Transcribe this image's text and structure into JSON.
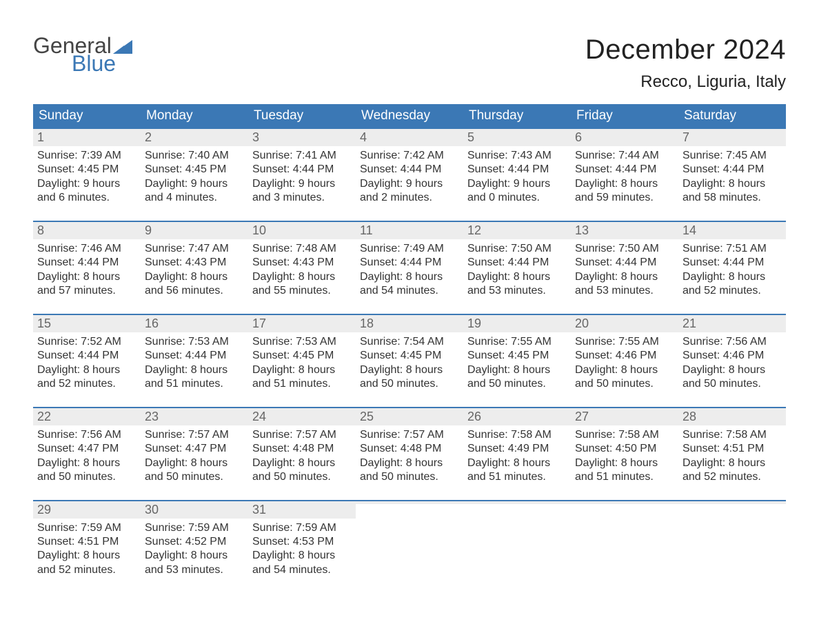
{
  "logo": {
    "word1": "General",
    "word2": "Blue",
    "triangle_color": "#3b78b5"
  },
  "title": "December 2024",
  "location": "Recco, Liguria, Italy",
  "colors": {
    "header_bg": "#3b78b5",
    "header_text": "#ffffff",
    "daynum_bg": "#ededed",
    "daynum_text": "#666666",
    "body_text": "#333333",
    "week_border": "#3b78b5",
    "page_bg": "#ffffff"
  },
  "typography": {
    "title_fontsize": 40,
    "location_fontsize": 24,
    "header_fontsize": 19,
    "daynum_fontsize": 18,
    "body_fontsize": 16
  },
  "layout": {
    "columns": 7,
    "rows": 5
  },
  "day_names": [
    "Sunday",
    "Monday",
    "Tuesday",
    "Wednesday",
    "Thursday",
    "Friday",
    "Saturday"
  ],
  "weeks": [
    [
      {
        "n": "1",
        "sunrise": "7:39 AM",
        "sunset": "4:45 PM",
        "dl1": "9 hours",
        "dl2": "and 6 minutes."
      },
      {
        "n": "2",
        "sunrise": "7:40 AM",
        "sunset": "4:45 PM",
        "dl1": "9 hours",
        "dl2": "and 4 minutes."
      },
      {
        "n": "3",
        "sunrise": "7:41 AM",
        "sunset": "4:44 PM",
        "dl1": "9 hours",
        "dl2": "and 3 minutes."
      },
      {
        "n": "4",
        "sunrise": "7:42 AM",
        "sunset": "4:44 PM",
        "dl1": "9 hours",
        "dl2": "and 2 minutes."
      },
      {
        "n": "5",
        "sunrise": "7:43 AM",
        "sunset": "4:44 PM",
        "dl1": "9 hours",
        "dl2": "and 0 minutes."
      },
      {
        "n": "6",
        "sunrise": "7:44 AM",
        "sunset": "4:44 PM",
        "dl1": "8 hours",
        "dl2": "and 59 minutes."
      },
      {
        "n": "7",
        "sunrise": "7:45 AM",
        "sunset": "4:44 PM",
        "dl1": "8 hours",
        "dl2": "and 58 minutes."
      }
    ],
    [
      {
        "n": "8",
        "sunrise": "7:46 AM",
        "sunset": "4:44 PM",
        "dl1": "8 hours",
        "dl2": "and 57 minutes."
      },
      {
        "n": "9",
        "sunrise": "7:47 AM",
        "sunset": "4:43 PM",
        "dl1": "8 hours",
        "dl2": "and 56 minutes."
      },
      {
        "n": "10",
        "sunrise": "7:48 AM",
        "sunset": "4:43 PM",
        "dl1": "8 hours",
        "dl2": "and 55 minutes."
      },
      {
        "n": "11",
        "sunrise": "7:49 AM",
        "sunset": "4:44 PM",
        "dl1": "8 hours",
        "dl2": "and 54 minutes."
      },
      {
        "n": "12",
        "sunrise": "7:50 AM",
        "sunset": "4:44 PM",
        "dl1": "8 hours",
        "dl2": "and 53 minutes."
      },
      {
        "n": "13",
        "sunrise": "7:50 AM",
        "sunset": "4:44 PM",
        "dl1": "8 hours",
        "dl2": "and 53 minutes."
      },
      {
        "n": "14",
        "sunrise": "7:51 AM",
        "sunset": "4:44 PM",
        "dl1": "8 hours",
        "dl2": "and 52 minutes."
      }
    ],
    [
      {
        "n": "15",
        "sunrise": "7:52 AM",
        "sunset": "4:44 PM",
        "dl1": "8 hours",
        "dl2": "and 52 minutes."
      },
      {
        "n": "16",
        "sunrise": "7:53 AM",
        "sunset": "4:44 PM",
        "dl1": "8 hours",
        "dl2": "and 51 minutes."
      },
      {
        "n": "17",
        "sunrise": "7:53 AM",
        "sunset": "4:45 PM",
        "dl1": "8 hours",
        "dl2": "and 51 minutes."
      },
      {
        "n": "18",
        "sunrise": "7:54 AM",
        "sunset": "4:45 PM",
        "dl1": "8 hours",
        "dl2": "and 50 minutes."
      },
      {
        "n": "19",
        "sunrise": "7:55 AM",
        "sunset": "4:45 PM",
        "dl1": "8 hours",
        "dl2": "and 50 minutes."
      },
      {
        "n": "20",
        "sunrise": "7:55 AM",
        "sunset": "4:46 PM",
        "dl1": "8 hours",
        "dl2": "and 50 minutes."
      },
      {
        "n": "21",
        "sunrise": "7:56 AM",
        "sunset": "4:46 PM",
        "dl1": "8 hours",
        "dl2": "and 50 minutes."
      }
    ],
    [
      {
        "n": "22",
        "sunrise": "7:56 AM",
        "sunset": "4:47 PM",
        "dl1": "8 hours",
        "dl2": "and 50 minutes."
      },
      {
        "n": "23",
        "sunrise": "7:57 AM",
        "sunset": "4:47 PM",
        "dl1": "8 hours",
        "dl2": "and 50 minutes."
      },
      {
        "n": "24",
        "sunrise": "7:57 AM",
        "sunset": "4:48 PM",
        "dl1": "8 hours",
        "dl2": "and 50 minutes."
      },
      {
        "n": "25",
        "sunrise": "7:57 AM",
        "sunset": "4:48 PM",
        "dl1": "8 hours",
        "dl2": "and 50 minutes."
      },
      {
        "n": "26",
        "sunrise": "7:58 AM",
        "sunset": "4:49 PM",
        "dl1": "8 hours",
        "dl2": "and 51 minutes."
      },
      {
        "n": "27",
        "sunrise": "7:58 AM",
        "sunset": "4:50 PM",
        "dl1": "8 hours",
        "dl2": "and 51 minutes."
      },
      {
        "n": "28",
        "sunrise": "7:58 AM",
        "sunset": "4:51 PM",
        "dl1": "8 hours",
        "dl2": "and 52 minutes."
      }
    ],
    [
      {
        "n": "29",
        "sunrise": "7:59 AM",
        "sunset": "4:51 PM",
        "dl1": "8 hours",
        "dl2": "and 52 minutes."
      },
      {
        "n": "30",
        "sunrise": "7:59 AM",
        "sunset": "4:52 PM",
        "dl1": "8 hours",
        "dl2": "and 53 minutes."
      },
      {
        "n": "31",
        "sunrise": "7:59 AM",
        "sunset": "4:53 PM",
        "dl1": "8 hours",
        "dl2": "and 54 minutes."
      },
      {
        "n": "",
        "sunrise": "",
        "sunset": "",
        "dl1": "",
        "dl2": ""
      },
      {
        "n": "",
        "sunrise": "",
        "sunset": "",
        "dl1": "",
        "dl2": ""
      },
      {
        "n": "",
        "sunrise": "",
        "sunset": "",
        "dl1": "",
        "dl2": ""
      },
      {
        "n": "",
        "sunrise": "",
        "sunset": "",
        "dl1": "",
        "dl2": ""
      }
    ]
  ],
  "labels": {
    "sunrise_prefix": "Sunrise: ",
    "sunset_prefix": "Sunset: ",
    "daylight_prefix": "Daylight: "
  }
}
